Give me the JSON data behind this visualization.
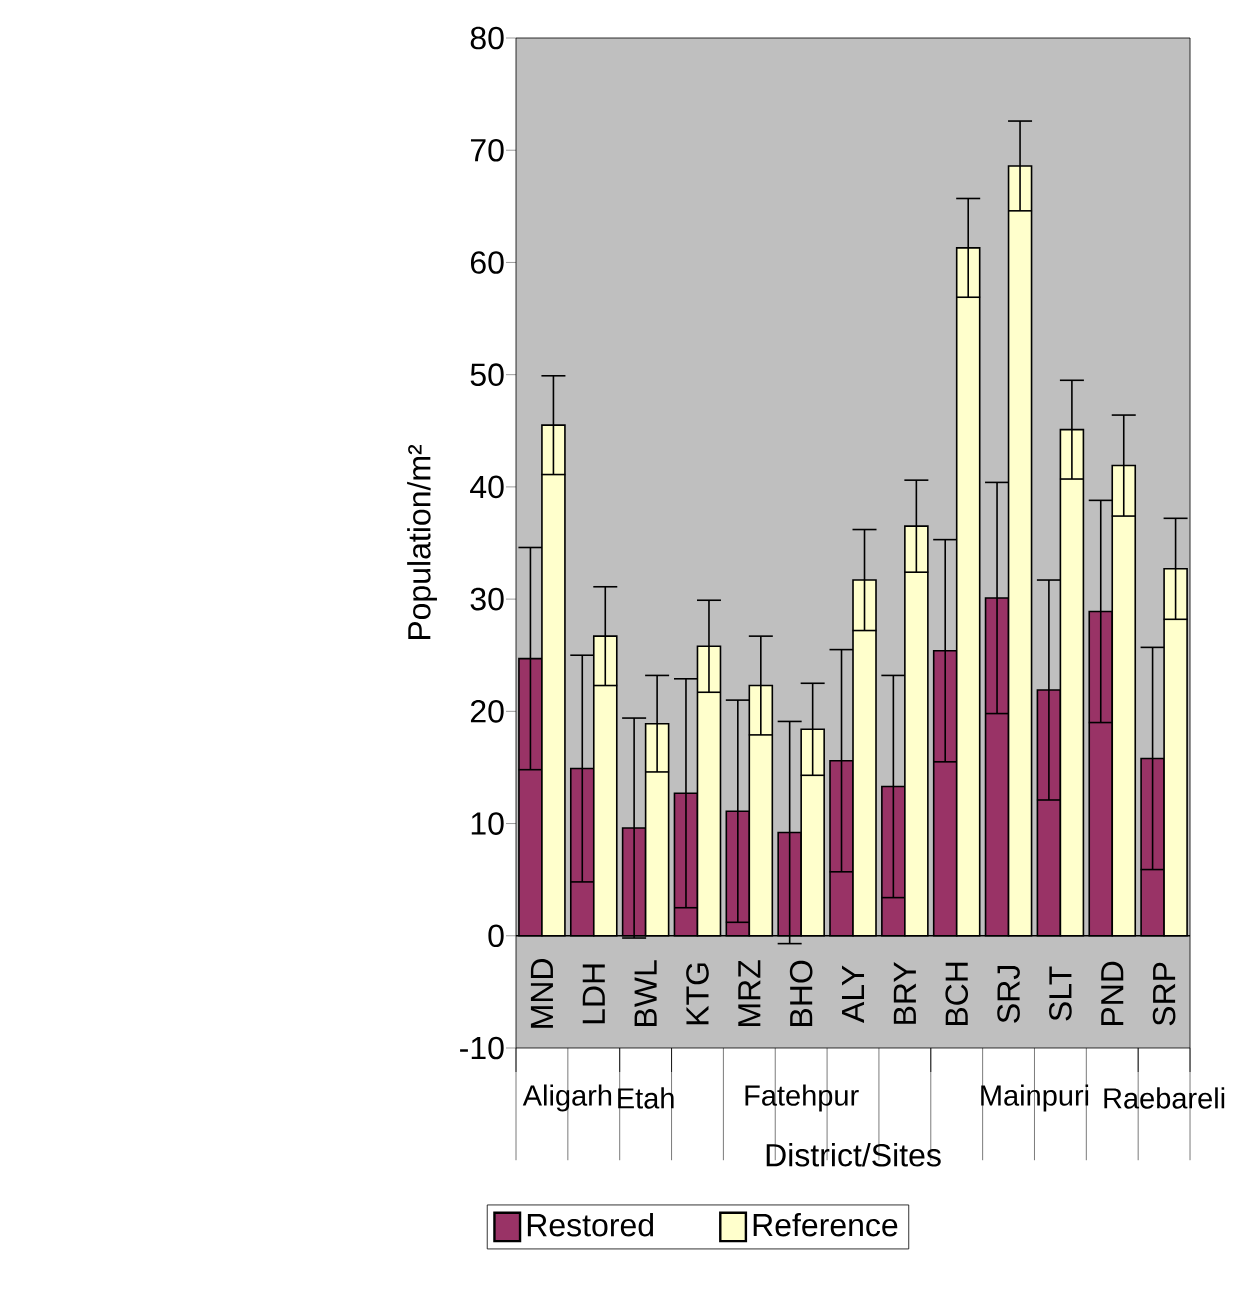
{
  "chart_data": {
    "type": "bar",
    "xlabel": "District/Sites",
    "ylabel": "Population/m²",
    "categories": [
      "MND",
      "LDH",
      "BWL",
      "KTG",
      "MRZ",
      "BHO",
      "ALY",
      "BRY",
      "BCH",
      "SRJ",
      "SLT",
      "PND",
      "SRP"
    ],
    "series": [
      {
        "name": "Restored",
        "color": "#993366",
        "values": [
          24.7,
          14.9,
          9.6,
          12.7,
          11.1,
          9.2,
          15.6,
          13.3,
          25.4,
          30.1,
          21.9,
          28.9,
          15.8
        ],
        "errors": [
          9.9,
          10.1,
          9.8,
          10.2,
          9.9,
          9.9,
          9.9,
          9.9,
          9.9,
          10.3,
          9.8,
          9.9,
          9.9
        ]
      },
      {
        "name": "Reference",
        "color": "#ffffcc",
        "values": [
          45.5,
          26.7,
          18.9,
          25.8,
          22.3,
          18.4,
          31.7,
          36.5,
          61.3,
          68.6,
          45.1,
          41.9,
          32.7
        ],
        "errors": [
          4.4,
          4.4,
          4.3,
          4.1,
          4.4,
          4.1,
          4.5,
          4.1,
          4.4,
          4.0,
          4.4,
          4.5,
          4.5
        ]
      }
    ],
    "annotations": [
      "Aligarh",
      "Etah",
      "Fatehpur",
      "Mainpuri",
      "Raebareli"
    ],
    "ylim": [
      -10,
      80
    ],
    "yticks": [
      -10,
      0,
      10,
      20,
      30,
      40,
      50,
      60,
      70,
      80
    ],
    "legend": "bottom",
    "grid": false
  }
}
